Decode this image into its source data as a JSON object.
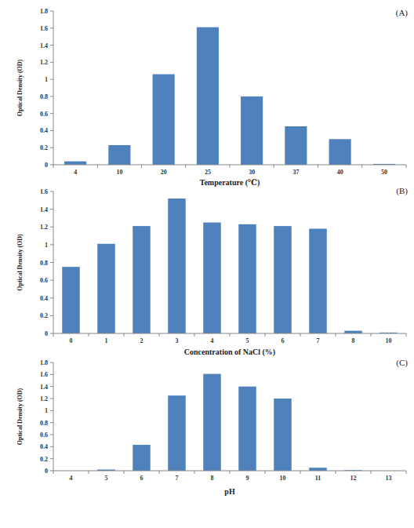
{
  "chart_data": [
    {
      "type": "bar",
      "title": "(A)",
      "x_label": "Temperature (℃)",
      "y_label": "Optical Density (OD)",
      "categories": [
        "4",
        "10",
        "20",
        "25",
        "30",
        "37",
        "40",
        "50"
      ],
      "values": [
        0.04,
        0.23,
        1.06,
        1.61,
        0.8,
        0.45,
        0.3,
        0.01
      ],
      "color": "#4f81bd",
      "ylim": [
        0,
        1.8
      ],
      "yticks": [
        0,
        0.2,
        0.4,
        0.6,
        0.8,
        1,
        1.2,
        1.4,
        1.6,
        1.8
      ],
      "grid": false
    },
    {
      "type": "bar",
      "title": "(B)",
      "x_label": "Concentration of NaCl (%)",
      "y_label": "Optical Density (OD)",
      "categories": [
        "0",
        "1",
        "2",
        "3",
        "4",
        "5",
        "6",
        "7",
        "8",
        "10"
      ],
      "values": [
        0.75,
        1.01,
        1.21,
        1.52,
        1.25,
        1.23,
        1.21,
        1.18,
        0.03,
        0.01
      ],
      "color": "#4f81bd",
      "ylim": [
        0,
        1.6
      ],
      "yticks": [
        0,
        0.2,
        0.4,
        0.6,
        0.8,
        1,
        1.2,
        1.4,
        1.6
      ],
      "grid": false
    },
    {
      "type": "bar",
      "title": "(C)",
      "x_label": "pH",
      "y_label": "Optical Density (OD)",
      "categories": [
        "4",
        "5",
        "6",
        "7",
        "8",
        "9",
        "10",
        "11",
        "12",
        "13"
      ],
      "values": [
        0,
        0.02,
        0.43,
        1.25,
        1.61,
        1.4,
        1.2,
        0.05,
        0.01,
        0
      ],
      "color": "#4f81bd",
      "ylim": [
        0,
        1.8
      ],
      "yticks": [
        0,
        0.2,
        0.4,
        0.6,
        0.8,
        1,
        1.2,
        1.4,
        1.6,
        1.8
      ],
      "grid": false
    }
  ]
}
